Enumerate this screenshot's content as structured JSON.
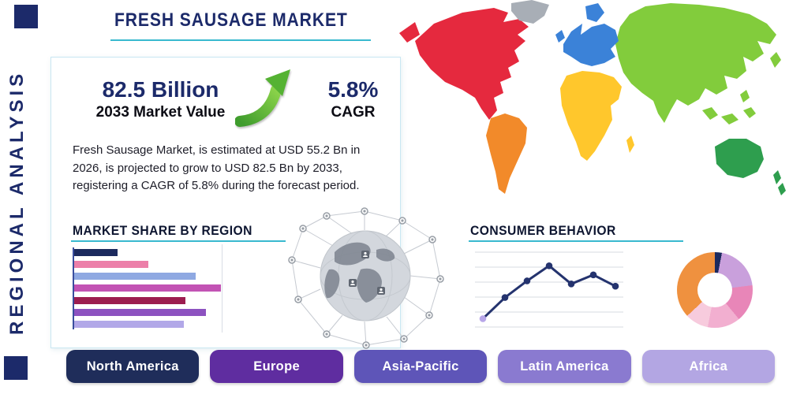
{
  "colors": {
    "navy": "#1c2a6a",
    "accent_teal": "#39b9cf"
  },
  "page": {
    "title": "FRESH SAUSAGE MARKET",
    "side_label": "REGIONAL ANALYSIS"
  },
  "stats": {
    "value": "82.5 Billion",
    "value_label": "2033 Market Value",
    "cagr": "5.8%",
    "cagr_label": "CAGR",
    "description": "Fresh Sausage Market, is estimated at USD 55.2 Bn in 2026, is projected to grow to USD 82.5 Bn by 2033, registering a CAGR of 5.8% during the forecast period."
  },
  "sections": {
    "market_share_title": "MARKET SHARE BY REGION",
    "consumer_behavior_title": "CONSUMER BEHAVIOR"
  },
  "regions": [
    {
      "label": "North America",
      "color": "#1f2d5a"
    },
    {
      "label": "Europe",
      "color": "#5f2da0"
    },
    {
      "label": "Asia-Pacific",
      "color": "#5e55b8"
    },
    {
      "label": "Latin America",
      "color": "#8a7ad0"
    },
    {
      "label": "Africa",
      "color": "#b3a6e3"
    }
  ],
  "chart_data": [
    {
      "type": "bar",
      "title": "MARKET SHARE BY REGION",
      "orientation": "horizontal",
      "values": [
        29,
        50,
        82,
        99,
        75,
        89,
        74
      ],
      "colors": [
        "#1c2a5e",
        "#ec7fa9",
        "#8fa9e2",
        "#c253b4",
        "#9c1d50",
        "#8d52c0",
        "#b2a8e8"
      ],
      "xlim": [
        0,
        100
      ],
      "grid": true,
      "note": "no tick labels shown; values estimated relative to axis span"
    },
    {
      "type": "line",
      "title": "CONSUMER BEHAVIOR",
      "x": [
        1,
        2,
        3,
        4,
        5,
        6,
        7
      ],
      "values": [
        12,
        40,
        62,
        82,
        58,
        70,
        55
      ],
      "ylim": [
        0,
        100
      ],
      "color": "#24336e",
      "first_marker_color": "#b7a6e8",
      "grid": "horizontal",
      "note": "no tick labels shown; values estimated from marker heights"
    },
    {
      "type": "pie",
      "donut": true,
      "title": "",
      "values": [
        3,
        20,
        16,
        14,
        10,
        37
      ],
      "colors": [
        "#1c2a5e",
        "#c9a0dc",
        "#e886b8",
        "#f2afd0",
        "#f7cbdd",
        "#ef913f"
      ]
    }
  ]
}
